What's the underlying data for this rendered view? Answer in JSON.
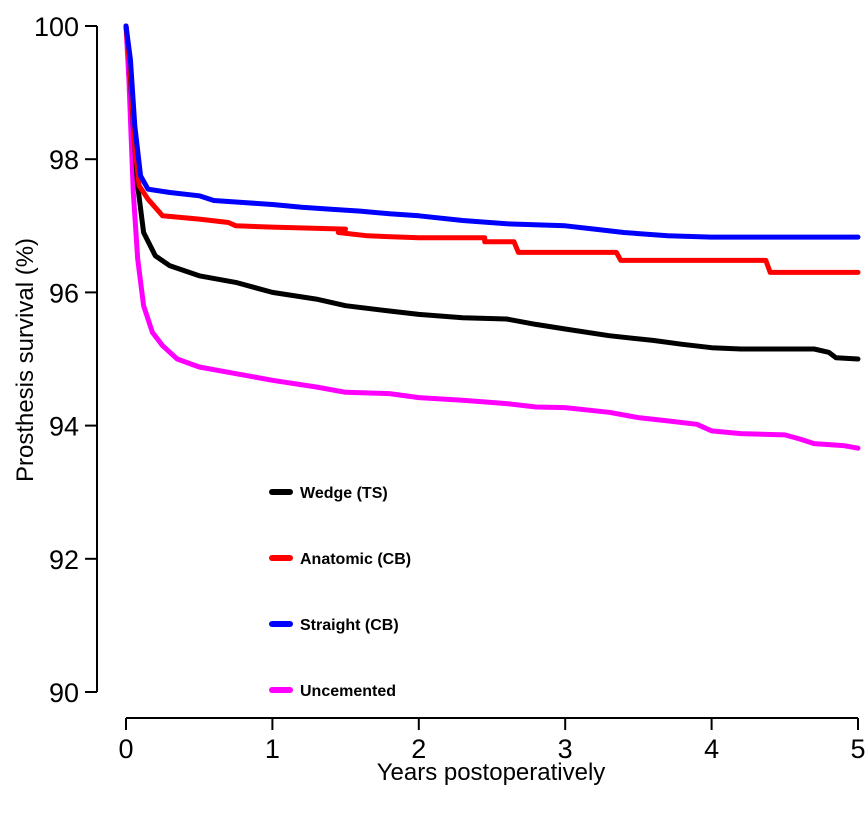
{
  "chart_data": {
    "type": "line",
    "title": "",
    "xlabel": "Years postoperatively",
    "ylabel": "Prosthesis survival (%)",
    "xlim": [
      0,
      5
    ],
    "ylim": [
      90,
      100
    ],
    "x_ticks": [
      0,
      1,
      2,
      3,
      4,
      5
    ],
    "y_ticks": [
      90,
      92,
      94,
      96,
      98,
      100
    ],
    "x_tick_labels": [
      "0",
      "1",
      "2",
      "3",
      "4",
      "5"
    ],
    "y_tick_labels": [
      "90",
      "92",
      "94",
      "96",
      "98",
      "100"
    ],
    "grid": false,
    "legend_position": "bottom-left inside plot",
    "series": [
      {
        "name": "Wedge (TS)",
        "color": "#000000",
        "points": [
          [
            0,
            100
          ],
          [
            0.02,
            99.6
          ],
          [
            0.05,
            98.5
          ],
          [
            0.08,
            97.6
          ],
          [
            0.12,
            96.9
          ],
          [
            0.2,
            96.55
          ],
          [
            0.3,
            96.4
          ],
          [
            0.5,
            96.25
          ],
          [
            0.75,
            96.15
          ],
          [
            1.0,
            96.0
          ],
          [
            1.3,
            95.9
          ],
          [
            1.5,
            95.8
          ],
          [
            1.8,
            95.72
          ],
          [
            2.0,
            95.67
          ],
          [
            2.3,
            95.62
          ],
          [
            2.6,
            95.6
          ],
          [
            2.8,
            95.52
          ],
          [
            3.0,
            95.45
          ],
          [
            3.3,
            95.35
          ],
          [
            3.6,
            95.28
          ],
          [
            3.8,
            95.22
          ],
          [
            4.0,
            95.17
          ],
          [
            4.2,
            95.15
          ],
          [
            4.5,
            95.15
          ],
          [
            4.7,
            95.15
          ],
          [
            4.8,
            95.1
          ],
          [
            4.85,
            95.02
          ],
          [
            5.0,
            95.0
          ]
        ]
      },
      {
        "name": "Anatomic (CB)",
        "color": "#ff0000",
        "points": [
          [
            0,
            100
          ],
          [
            0.03,
            99.3
          ],
          [
            0.06,
            98.2
          ],
          [
            0.09,
            97.6
          ],
          [
            0.15,
            97.4
          ],
          [
            0.25,
            97.15
          ],
          [
            0.5,
            97.1
          ],
          [
            0.7,
            97.05
          ],
          [
            0.75,
            97.0
          ],
          [
            1.0,
            96.98
          ],
          [
            1.5,
            96.95
          ],
          [
            1.45,
            96.9
          ],
          [
            1.65,
            96.85
          ],
          [
            2.0,
            96.82
          ],
          [
            2.45,
            96.82
          ],
          [
            2.45,
            96.76
          ],
          [
            2.65,
            96.76
          ],
          [
            2.68,
            96.6
          ],
          [
            3.35,
            96.6
          ],
          [
            3.38,
            96.48
          ],
          [
            4.37,
            96.48
          ],
          [
            4.4,
            96.3
          ],
          [
            5.0,
            96.3
          ]
        ]
      },
      {
        "name": "Straight (CB)",
        "color": "#0000ff",
        "points": [
          [
            0,
            100
          ],
          [
            0.03,
            99.5
          ],
          [
            0.06,
            98.5
          ],
          [
            0.1,
            97.75
          ],
          [
            0.15,
            97.55
          ],
          [
            0.3,
            97.5
          ],
          [
            0.5,
            97.45
          ],
          [
            0.6,
            97.38
          ],
          [
            0.8,
            97.35
          ],
          [
            1.0,
            97.32
          ],
          [
            1.2,
            97.28
          ],
          [
            1.4,
            97.25
          ],
          [
            1.6,
            97.22
          ],
          [
            1.8,
            97.18
          ],
          [
            2.0,
            97.15
          ],
          [
            2.3,
            97.08
          ],
          [
            2.6,
            97.03
          ],
          [
            3.0,
            97.0
          ],
          [
            3.2,
            96.95
          ],
          [
            3.4,
            96.9
          ],
          [
            3.7,
            96.85
          ],
          [
            4.0,
            96.83
          ],
          [
            4.5,
            96.83
          ],
          [
            5.0,
            96.83
          ]
        ]
      },
      {
        "name": "Uncemented",
        "color": "#ff00ff",
        "points": [
          [
            0,
            100
          ],
          [
            0.02,
            99.2
          ],
          [
            0.05,
            97.5
          ],
          [
            0.08,
            96.5
          ],
          [
            0.12,
            95.8
          ],
          [
            0.18,
            95.4
          ],
          [
            0.25,
            95.2
          ],
          [
            0.35,
            95.0
          ],
          [
            0.5,
            94.88
          ],
          [
            0.7,
            94.8
          ],
          [
            1.0,
            94.68
          ],
          [
            1.3,
            94.58
          ],
          [
            1.5,
            94.5
          ],
          [
            1.8,
            94.48
          ],
          [
            2.0,
            94.42
          ],
          [
            2.3,
            94.38
          ],
          [
            2.6,
            94.33
          ],
          [
            2.8,
            94.28
          ],
          [
            3.0,
            94.27
          ],
          [
            3.3,
            94.2
          ],
          [
            3.5,
            94.12
          ],
          [
            3.7,
            94.07
          ],
          [
            3.9,
            94.02
          ],
          [
            4.0,
            93.92
          ],
          [
            4.2,
            93.88
          ],
          [
            4.5,
            93.86
          ],
          [
            4.6,
            93.8
          ],
          [
            4.7,
            93.73
          ],
          [
            4.9,
            93.7
          ],
          [
            5.0,
            93.66
          ]
        ]
      }
    ]
  }
}
